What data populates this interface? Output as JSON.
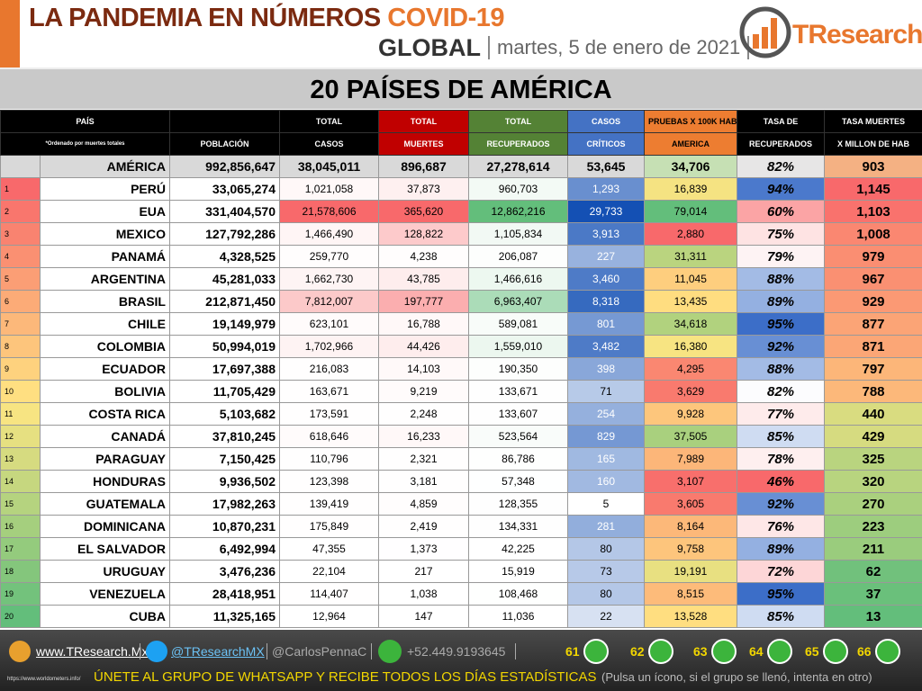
{
  "header": {
    "title": "LA PANDEMIA EN NÚMEROS",
    "title_highlight": "COVID-19",
    "scope": "GLOBAL",
    "date": "martes, 5 de enero de 2021",
    "logo": "TResearch"
  },
  "table": {
    "title": "20 PAÍSES DE AMÉRICA",
    "columns": [
      {
        "top": "PAÍS",
        "bottom": "*Ordenado por muertes totales"
      },
      {
        "bottom": "POBLACIÓN"
      },
      {
        "top": "TOTAL",
        "bottom": "CASOS"
      },
      {
        "top": "TOTAL",
        "bottom": "MUERTES"
      },
      {
        "top": "TOTAL",
        "bottom": "RECUPERADOS"
      },
      {
        "top": "CASOS",
        "bottom": "CRÍTICOS"
      },
      {
        "top": "PRUEBAS X 100K HAB",
        "bottom": "AMERICA"
      },
      {
        "top": "TASA DE",
        "bottom": "RECUPERADOS"
      },
      {
        "top": "TASA MUERTES",
        "bottom": "X MILLON DE HAB"
      }
    ],
    "total": [
      "AMÉRICA",
      "992,856,647",
      "38,045,011",
      "896,687",
      "27,278,614",
      "53,645",
      "34,706",
      "82%",
      "903"
    ],
    "rows": [
      [
        "1",
        "PERÚ",
        "33,065,274",
        "1,021,058",
        "37,873",
        "960,703",
        "1,293",
        "16,839",
        "94%",
        "1,145"
      ],
      [
        "2",
        "EUA",
        "331,404,570",
        "21,578,606",
        "365,620",
        "12,862,216",
        "29,733",
        "79,014",
        "60%",
        "1,103"
      ],
      [
        "3",
        "MEXICO",
        "127,792,286",
        "1,466,490",
        "128,822",
        "1,105,834",
        "3,913",
        "2,880",
        "75%",
        "1,008"
      ],
      [
        "4",
        "PANAMÁ",
        "4,328,525",
        "259,770",
        "4,238",
        "206,087",
        "227",
        "31,311",
        "79%",
        "979"
      ],
      [
        "5",
        "ARGENTINA",
        "45,281,033",
        "1,662,730",
        "43,785",
        "1,466,616",
        "3,460",
        "11,045",
        "88%",
        "967"
      ],
      [
        "6",
        "BRASIL",
        "212,871,450",
        "7,812,007",
        "197,777",
        "6,963,407",
        "8,318",
        "13,435",
        "89%",
        "929"
      ],
      [
        "7",
        "CHILE",
        "19,149,979",
        "623,101",
        "16,788",
        "589,081",
        "801",
        "34,618",
        "95%",
        "877"
      ],
      [
        "8",
        "COLOMBIA",
        "50,994,019",
        "1,702,966",
        "44,426",
        "1,559,010",
        "3,482",
        "16,380",
        "92%",
        "871"
      ],
      [
        "9",
        "ECUADOR",
        "17,697,388",
        "216,083",
        "14,103",
        "190,350",
        "398",
        "4,295",
        "88%",
        "797"
      ],
      [
        "10",
        "BOLIVIA",
        "11,705,429",
        "163,671",
        "9,219",
        "133,671",
        "71",
        "3,629",
        "82%",
        "788"
      ],
      [
        "11",
        "COSTA RICA",
        "5,103,682",
        "173,591",
        "2,248",
        "133,607",
        "254",
        "9,928",
        "77%",
        "440"
      ],
      [
        "12",
        "CANADÁ",
        "37,810,245",
        "618,646",
        "16,233",
        "523,564",
        "829",
        "37,505",
        "85%",
        "429"
      ],
      [
        "13",
        "PARAGUAY",
        "7,150,425",
        "110,796",
        "2,321",
        "86,786",
        "165",
        "7,989",
        "78%",
        "325"
      ],
      [
        "14",
        "HONDURAS",
        "9,936,502",
        "123,398",
        "3,181",
        "57,348",
        "160",
        "3,107",
        "46%",
        "320"
      ],
      [
        "15",
        "GUATEMALA",
        "17,982,263",
        "139,419",
        "4,859",
        "128,355",
        "5",
        "3,605",
        "92%",
        "270"
      ],
      [
        "16",
        "DOMINICANA",
        "10,870,231",
        "175,849",
        "2,419",
        "134,331",
        "281",
        "8,164",
        "76%",
        "223"
      ],
      [
        "17",
        "EL SALVADOR",
        "6,492,994",
        "47,355",
        "1,373",
        "42,225",
        "80",
        "9,758",
        "89%",
        "211"
      ],
      [
        "18",
        "URUGUAY",
        "3,476,236",
        "22,104",
        "217",
        "15,919",
        "73",
        "19,191",
        "72%",
        "62"
      ],
      [
        "19",
        "VENEZUELA",
        "28,418,951",
        "114,407",
        "1,038",
        "108,468",
        "80",
        "8,515",
        "95%",
        "37"
      ],
      [
        "20",
        "CUBA",
        "11,325,165",
        "12,964",
        "147",
        "11,036",
        "22",
        "13,528",
        "85%",
        "13"
      ]
    ]
  },
  "footer": {
    "website": "www.TResearch.Mx",
    "twitter": "@TResearchMX",
    "handle": "@CarlosPennaC",
    "phone": "+52.449.9193645",
    "groups": [
      "61",
      "62",
      "63",
      "64",
      "65",
      "66"
    ],
    "call_to_action": "ÚNETE AL GRUPO DE WHATSAPP Y RECIBE TODOS LOS DÍAS ESTADÍSTICAS",
    "note": "(Pulsa un ícono, si el grupo se llenó, intenta en otro)",
    "source": "https://www.worldometers.info/"
  }
}
